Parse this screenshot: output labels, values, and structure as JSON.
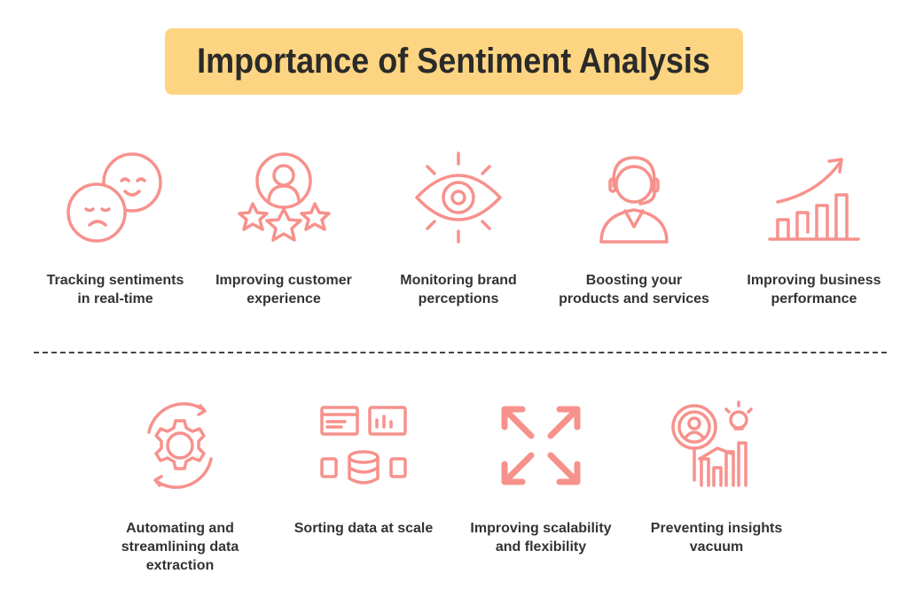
{
  "title": "Importance of Sentiment Analysis",
  "colors": {
    "title_bg": "#fdd582",
    "icon": "#f7918c",
    "text": "#333333"
  },
  "row1": [
    {
      "label": "Tracking sentiments in real-time",
      "icon": "happy-sad-faces-icon"
    },
    {
      "label": "Improving customer experience",
      "icon": "customer-rating-stars-icon"
    },
    {
      "label": "Monitoring brand perceptions",
      "icon": "eye-icon"
    },
    {
      "label": "Boosting your products and services",
      "icon": "support-agent-headset-icon"
    },
    {
      "label": "Improving business performance",
      "icon": "growth-bar-chart-icon"
    }
  ],
  "row2": [
    {
      "label": "Automating and streamlining data extraction",
      "icon": "gear-cycle-icon"
    },
    {
      "label": "Sorting data at scale",
      "icon": "database-dashboard-icon"
    },
    {
      "label": "Improving scalability and flexibility",
      "icon": "expand-arrows-icon"
    },
    {
      "label": "Preventing insights vacuum",
      "icon": "insight-search-chart-icon"
    }
  ]
}
